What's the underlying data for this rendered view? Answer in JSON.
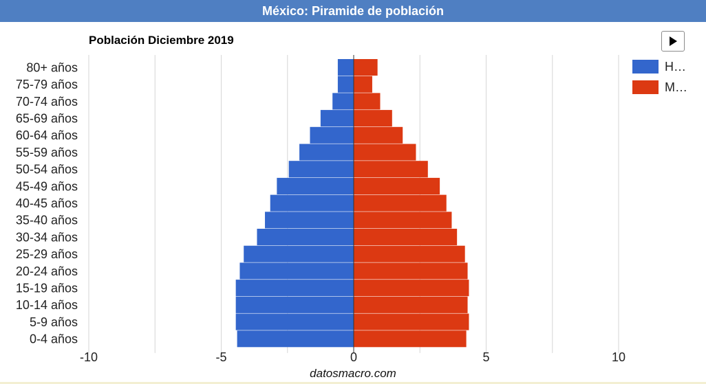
{
  "header": {
    "title": "México: Piramide de población"
  },
  "colors": {
    "header_bg": "#4f7fc2",
    "male": "#3366cc",
    "female": "#dc3912"
  },
  "chart_data": {
    "type": "bar",
    "orientation": "horizontal",
    "title": "Población Diciembre 2019",
    "categories": [
      "80+ años",
      "75-79 años",
      "70-74 años",
      "65-69 años",
      "60-64 años",
      "55-59 años",
      "50-54 años",
      "45-49 años",
      "40-45 años",
      "35-40 años",
      "30-34 años",
      "25-29 años",
      "20-24 años",
      "15-19 años",
      "10-14 años",
      "5-9 años",
      "0-4 años"
    ],
    "series": [
      {
        "name": "H…",
        "color": "#3366cc",
        "values": [
          -0.6,
          -0.6,
          -0.8,
          -1.25,
          -1.65,
          -2.05,
          -2.45,
          -2.9,
          -3.15,
          -3.35,
          -3.65,
          -4.15,
          -4.3,
          -4.45,
          -4.45,
          -4.45,
          -4.4
        ]
      },
      {
        "name": "M…",
        "color": "#dc3912",
        "values": [
          0.9,
          0.7,
          1.0,
          1.45,
          1.85,
          2.35,
          2.8,
          3.25,
          3.5,
          3.7,
          3.9,
          4.2,
          4.3,
          4.35,
          4.3,
          4.35,
          4.25
        ]
      }
    ],
    "xlim": [
      -10,
      10
    ],
    "xticks": [
      -10,
      -5,
      0,
      5,
      10
    ],
    "grid": true,
    "legend": "top-right"
  },
  "controls": {
    "play_label": "▶"
  },
  "footer": {
    "source": "datosmacro.com"
  }
}
